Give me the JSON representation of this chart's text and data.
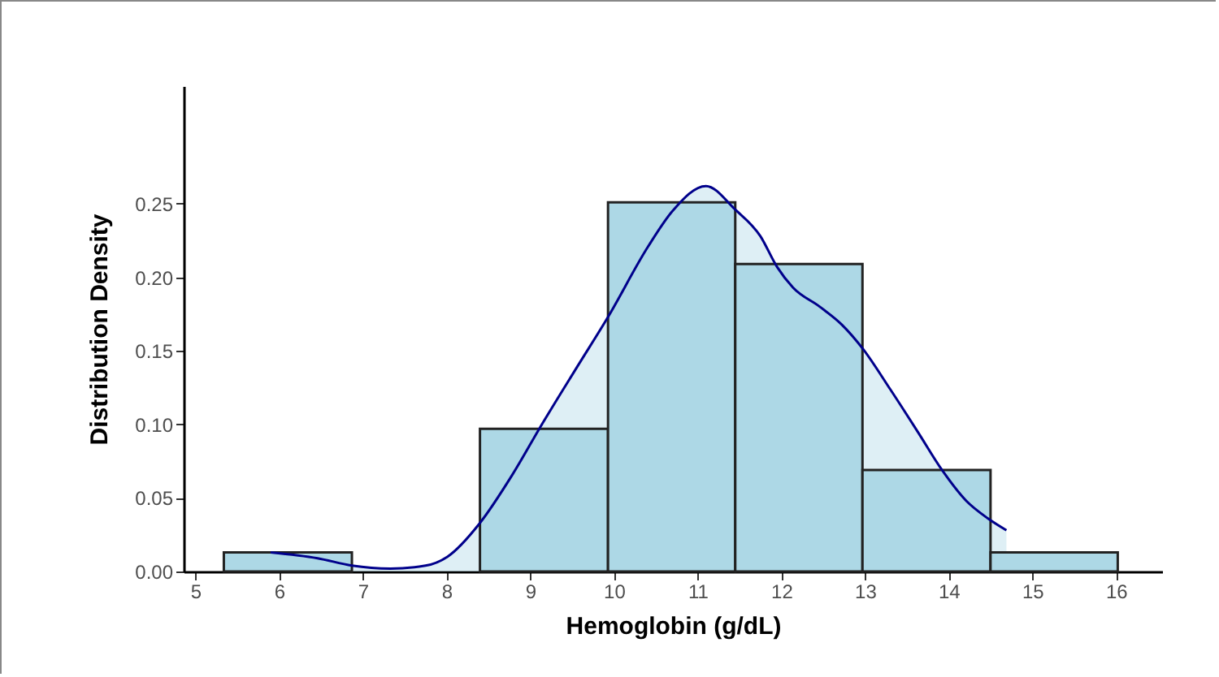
{
  "chart_data": {
    "type": "histogram",
    "xlabel": "Hemoglobin (g/dL)",
    "ylabel": "Distribution Density",
    "bins": [
      5.34,
      6.87,
      8.4,
      9.93,
      11.45,
      12.97,
      14.5,
      16.02
    ],
    "values": [
      0.013,
      0,
      0.097,
      0.251,
      0.209,
      0.069,
      0.013
    ],
    "color": "#add8e6",
    "series": [
      {
        "type": "area",
        "color": "#00008b",
        "x": [
          5.9,
          6.46,
          6.87,
          7.33,
          7.75,
          8.01,
          8.4,
          8.79,
          9.14,
          9.56,
          9.93,
          10.41,
          10.7,
          11.1,
          11.45,
          11.75,
          11.95,
          12.14,
          12.46,
          12.72,
          12.98,
          13.3,
          13.63,
          13.92,
          14.21,
          14.47,
          14.69
        ],
        "values": [
          0.013,
          0.009,
          0.004,
          0.002,
          0.004,
          0.01,
          0.033,
          0.066,
          0.1,
          0.139,
          0.173,
          0.221,
          0.245,
          0.262,
          0.246,
          0.228,
          0.207,
          0.193,
          0.18,
          0.168,
          0.151,
          0.124,
          0.095,
          0.069,
          0.048,
          0.036,
          0.028
        ]
      }
    ],
    "xlim": [
      4.86,
      16.55
    ],
    "ylim": [
      0,
      0.33
    ],
    "xticks": [
      5,
      6,
      7,
      8,
      9,
      10,
      11,
      12,
      13,
      14,
      15,
      16
    ],
    "yticks": [
      {
        "value": 0,
        "label": "0.00"
      },
      {
        "value": 0.05,
        "label": "0.05"
      },
      {
        "value": 0.1,
        "label": "0.10"
      },
      {
        "value": 0.15,
        "label": "0.15"
      },
      {
        "value": 0.2,
        "label": "0.20"
      },
      {
        "value": 0.25,
        "label": "0.25"
      }
    ],
    "grid": false
  }
}
